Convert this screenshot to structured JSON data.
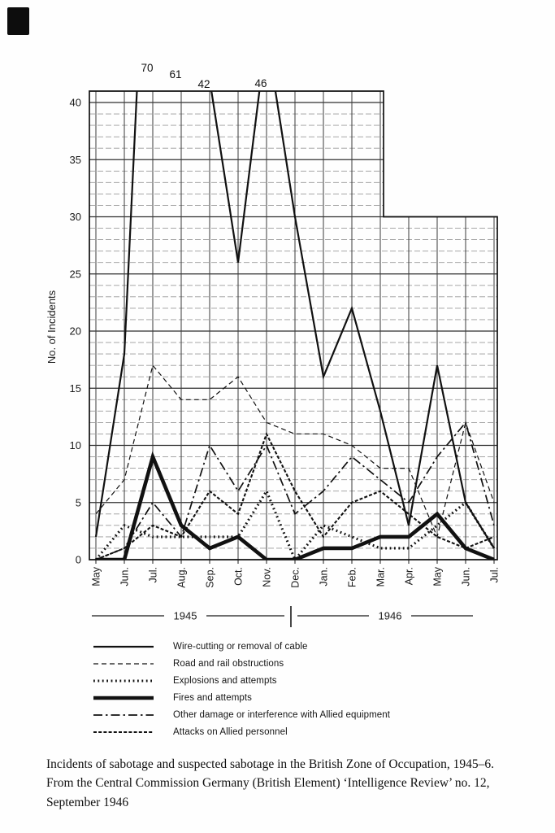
{
  "page": {
    "background": "#fefefe",
    "ink_color": "#1a1a1a",
    "minor_grid_color": "#9a9a9a"
  },
  "caption": "Incidents of sabotage and suspected sabotage in the British Zone of Occupation, 1945–6. From the Central Commission Germany (British Element) ‘Intelligence Review’ no. 12, September 1946",
  "chart_data": {
    "type": "line",
    "title": "",
    "xlabel": "",
    "ylabel": "No. of Incidents",
    "ylim": [
      0,
      41
    ],
    "y_ticks": [
      0,
      5,
      10,
      15,
      20,
      25,
      30,
      35,
      40
    ],
    "grid": "minor horizontal line every 1 unit, major every 5; vertical line at every month",
    "plot_area_note": "grid drawn up to just above 40 for May 1945 - Mar 1946, truncated at 30 for Apr - Jul 1946",
    "legend_position": "below chart",
    "categories": [
      "May",
      "Jun.",
      "Jul.",
      "Aug.",
      "Sep.",
      "Oct.",
      "Nov.",
      "Dec.",
      "Jan.",
      "Feb.",
      "Mar.",
      "Apr.",
      "May",
      "Jun.",
      "Jul."
    ],
    "x_axis": {
      "year_spans": [
        {
          "label": "1945",
          "from_month_index": 0,
          "to_month_index": 7
        },
        {
          "label": "1946",
          "from_month_index": 8,
          "to_month_index": 14
        }
      ]
    },
    "off_scale_annotations": [
      {
        "label": "70",
        "month_index": 2,
        "month": "Jul. 1945"
      },
      {
        "label": "61",
        "month_index": 3,
        "month": "Aug. 1945"
      },
      {
        "label": "42",
        "month_index": 4,
        "month": "Sep. 1945"
      },
      {
        "label": "46",
        "month_index": 6,
        "month": "Nov. 1945"
      }
    ],
    "series": [
      {
        "key": "wire-cutting",
        "name": "Wire-cutting or removal of cable",
        "style": "solid-medium",
        "values": [
          2,
          18,
          70,
          61,
          42,
          26,
          46,
          30,
          16,
          22,
          13,
          3,
          17,
          5,
          1
        ]
      },
      {
        "key": "road-rail",
        "name": "Road and rail obstructions",
        "style": "dashed",
        "values": [
          4,
          7,
          17,
          14,
          14,
          16,
          12,
          11,
          11,
          10,
          8,
          8,
          2,
          12,
          5
        ]
      },
      {
        "key": "explosions",
        "name": "Explosions and attempts",
        "style": "dotted-bold",
        "values": [
          0,
          3,
          2,
          2,
          2,
          2,
          6,
          0,
          3,
          2,
          1,
          1,
          3,
          5,
          1
        ]
      },
      {
        "key": "fires",
        "name": "Fires and attempts",
        "style": "solid-thick",
        "values": [
          0,
          0,
          9,
          3,
          1,
          2,
          0,
          0,
          1,
          1,
          2,
          2,
          4,
          1,
          0
        ]
      },
      {
        "key": "other-damage",
        "name": "Other damage or interference with Allied equipment",
        "style": "dash-dot",
        "values": [
          0,
          1,
          5,
          2,
          10,
          6,
          10,
          4,
          6,
          9,
          7,
          5,
          9,
          12,
          3
        ]
      },
      {
        "key": "attacks-personnel",
        "name": "Attacks on Allied personnel",
        "style": "dense-dash",
        "values": [
          0,
          1,
          3,
          2,
          6,
          4,
          11,
          6,
          2,
          5,
          6,
          4,
          2,
          1,
          2
        ]
      }
    ]
  }
}
